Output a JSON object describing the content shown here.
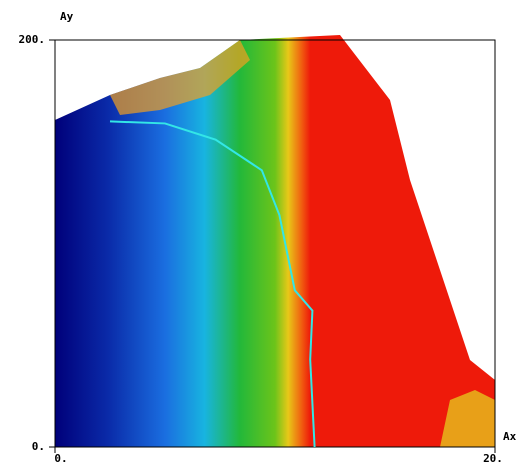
{
  "chart_data": {
    "type": "line",
    "xlabel": "Ax",
    "ylabel": "Ay",
    "xlim": [
      0,
      20
    ],
    "ylim": [
      0,
      200
    ],
    "xticks": [
      {
        "value": 0,
        "label": "0."
      },
      {
        "value": 20,
        "label": "20."
      }
    ],
    "yticks": [
      {
        "value": 0,
        "label": "0."
      },
      {
        "value": 200,
        "label": "200."
      }
    ],
    "series": [
      {
        "color": "#33e6e6",
        "x": [
          2.5,
          5,
          7.3,
          9.4,
          10.2,
          10.9,
          11.7,
          11.6,
          11.8
        ],
        "values": [
          160,
          159,
          151,
          136,
          114,
          77,
          67,
          43,
          0
        ]
      }
    ]
  }
}
